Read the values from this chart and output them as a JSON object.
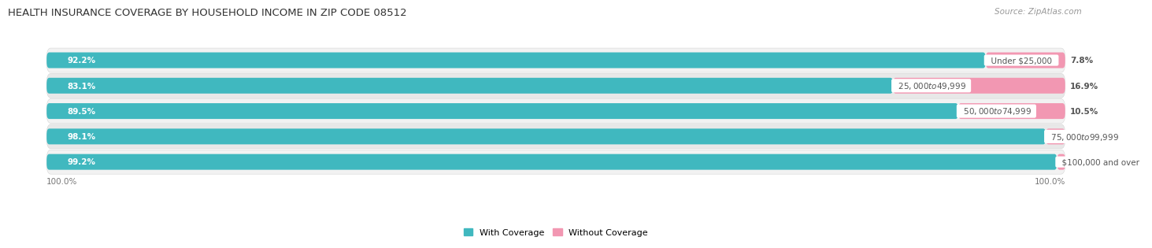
{
  "title": "HEALTH INSURANCE COVERAGE BY HOUSEHOLD INCOME IN ZIP CODE 08512",
  "source": "Source: ZipAtlas.com",
  "categories": [
    "Under $25,000",
    "$25,000 to $49,999",
    "$50,000 to $74,999",
    "$75,000 to $99,999",
    "$100,000 and over"
  ],
  "with_coverage": [
    92.2,
    83.1,
    89.5,
    98.1,
    99.2
  ],
  "without_coverage": [
    7.8,
    16.9,
    10.5,
    1.9,
    0.83
  ],
  "with_coverage_color": "#40b8bf",
  "without_coverage_color": "#f297b2",
  "background_color": "#ffffff",
  "row_bg_even": "#f2f2f2",
  "row_bg_odd": "#e8e8e8",
  "title_fontsize": 9.5,
  "source_fontsize": 7.5,
  "label_fontsize": 7.5,
  "category_fontsize": 7.5,
  "legend_fontsize": 8,
  "bar_height": 0.62,
  "axis_label_left": "100.0%",
  "axis_label_right": "100.0%",
  "total_width": 100
}
